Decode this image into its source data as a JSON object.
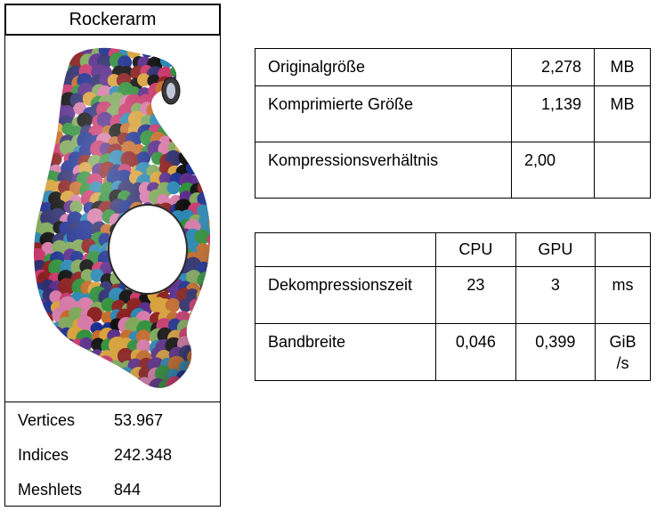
{
  "model": {
    "title": "Rockerarm",
    "image_alt": "3D-Modell mit farbigen Meshlets",
    "patch_colors": [
      "#1c2f8f",
      "#c8376c",
      "#2f8f3a",
      "#d8a13a",
      "#101010",
      "#2a86b3",
      "#8a1f1f",
      "#d67aa8",
      "#5a2d8a",
      "#7fa85a",
      "#c46b2a",
      "#2e2e6e"
    ]
  },
  "stats": [
    {
      "label": "Vertices",
      "value": "53.967"
    },
    {
      "label": "Indices",
      "value": "242.348"
    },
    {
      "label": "Meshlets",
      "value": "844"
    }
  ],
  "size_table": [
    {
      "label": "Originalgröße",
      "value": "2,278",
      "unit": "MB"
    },
    {
      "label": "Komprimierte Größe",
      "value": "1,139",
      "unit": "MB"
    },
    {
      "label": "Kompressionsverhältnis",
      "value": "2,00",
      "unit": ""
    }
  ],
  "perf_table": {
    "headers": {
      "cpu": "CPU",
      "gpu": "GPU"
    },
    "rows": [
      {
        "label": "Dekompressionszeit",
        "cpu": "23",
        "gpu": "3",
        "unit": "ms"
      },
      {
        "label": "Bandbreite",
        "cpu": "0,046",
        "gpu": "0,399",
        "unit_line1": "GiB",
        "unit_line2": "/s"
      }
    ]
  }
}
